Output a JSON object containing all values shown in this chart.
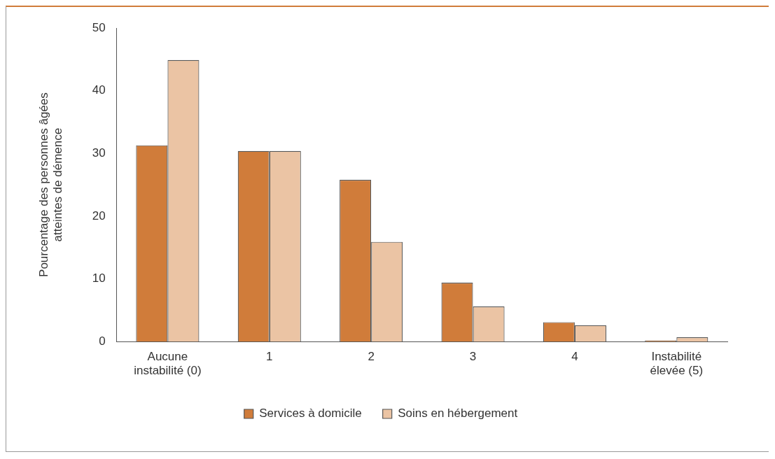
{
  "chart_data": {
    "type": "bar",
    "ylabel": "Pourcentage des personnes âgées\natteintes de démence",
    "categories": [
      "Aucune\ninstabilité (0)",
      "1",
      "2",
      "3",
      "4",
      "Instabilité\nélevée (5)"
    ],
    "series": [
      {
        "name": "Services à domicile",
        "color": "#d07c3a",
        "values": [
          31.3,
          30.4,
          25.8,
          9.4,
          3.1,
          0.2
        ]
      },
      {
        "name": "Soins en hébergement",
        "color": "#ebc4a4",
        "values": [
          44.9,
          30.4,
          15.9,
          5.6,
          2.6,
          0.7
        ]
      }
    ],
    "ylim": [
      0,
      50
    ],
    "yticks": [
      0,
      10,
      20,
      30,
      40,
      50
    ],
    "grid": false,
    "legend": "bottom"
  }
}
